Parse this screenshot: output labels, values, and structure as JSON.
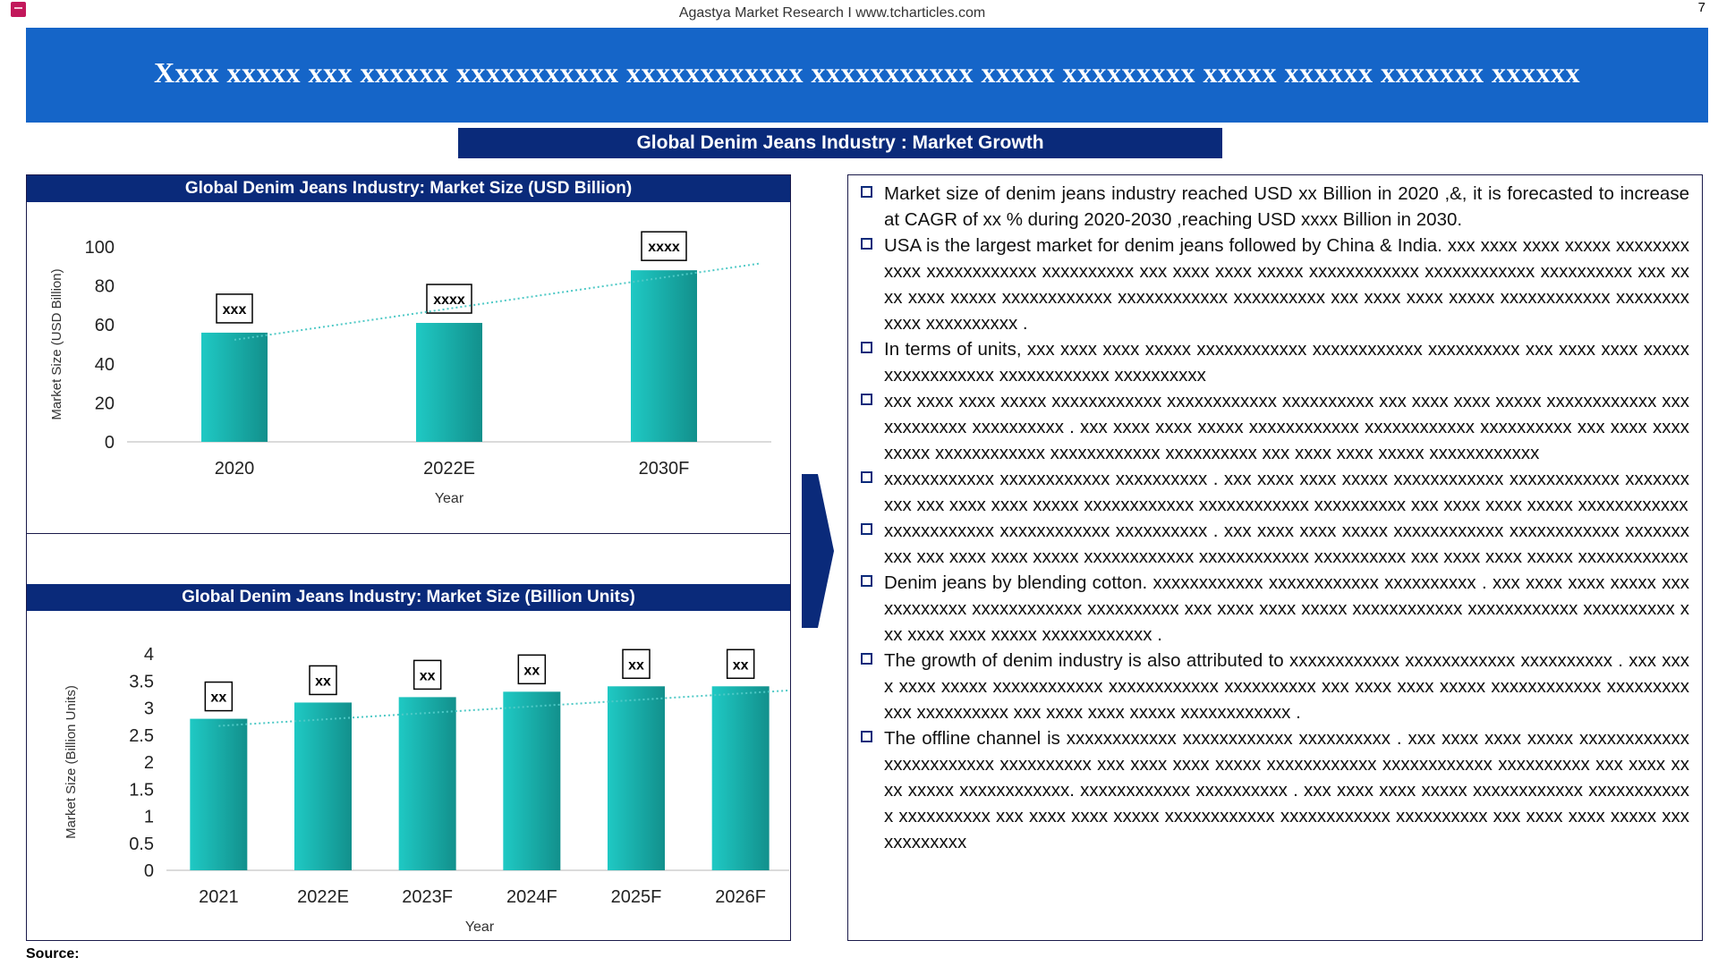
{
  "header": {
    "site": "Agastya Market Research I www.tcharticles.com",
    "page_number": "7",
    "banner_title": "Xxxx xxxxx xxx xxxxxx xxxxxxxxxxx xxxxxxxxxxxx xxxxxxxxxxx xxxxx xxxxxxxxx xxxxx xxxxxx xxxxxxx xxxxxx",
    "section_title": "Global Denim Jeans  Industry :  Market Growth",
    "banner_color": "#1565c8",
    "navy_color": "#0a2a7a"
  },
  "chart_data": [
    {
      "type": "bar",
      "title": "Global Denim Jeans Industry: Market Size (USD Billion)",
      "xlabel": "Year",
      "ylabel": "Market Size (USD Billion)",
      "categories": [
        "2020",
        "2022E",
        "2030F"
      ],
      "values": [
        56,
        61,
        88
      ],
      "data_labels": [
        "xxx",
        "xxxx",
        "xxxx"
      ],
      "ylim": [
        0,
        100
      ],
      "yticks": [
        "0",
        "20",
        "40",
        "60",
        "80",
        "100"
      ],
      "trendline": true,
      "bar_color": "#1fc9c4",
      "grid": false
    },
    {
      "type": "bar",
      "title": "Global Denim Jeans Industry: Market Size (Billion Units)",
      "xlabel": "Year",
      "ylabel": "Market Size (Billion Units)",
      "categories": [
        "2021",
        "2022E",
        "2023F",
        "2024F",
        "2025F",
        "2026F"
      ],
      "values": [
        2.8,
        3.1,
        3.2,
        3.3,
        3.4,
        3.4
      ],
      "data_labels": [
        "xx",
        "xx",
        "xx",
        "xx",
        "xx",
        "xx"
      ],
      "ylim": [
        0,
        4
      ],
      "yticks": [
        "0",
        "0.5",
        "1",
        "1.5",
        "2",
        "2.5",
        "3",
        "3.5",
        "4"
      ],
      "trendline": true,
      "bar_color": "#1fc9c4",
      "grid": false
    }
  ],
  "bullets": [
    "Market size of denim jeans industry reached USD xx Billion in 2020 ,&, it is forecasted to increase at CAGR of xx % during 2020-2030 ,reaching  USD xxxx Billion in 2030.",
    "USA is the largest market for denim jeans  followed by China & India. xxx xxxx xxxx xxxxx xxxxxxxxxxxx xxxxxxxxxxxx xxxxxxxxxx xxx xxxx xxxx xxxxx xxxxxxxxxxxx xxxxxxxxxxxx xxxxxxxxxx xxx xxxx xxxx xxxxx xxxxxxxxxxxx xxxxxxxxxxxx xxxxxxxxxx xxx xxxx xxxx xxxxx xxxxxxxxxxxx xxxxxxxxxxxx xxxxxxxxxx .",
    "In terms of units, xxx xxxx xxxx xxxxx xxxxxxxxxxxx xxxxxxxxxxxx xxxxxxxxxx xxx xxxx xxxx xxxxx xxxxxxxxxxxx xxxxxxxxxxxx xxxxxxxxxx",
    "xxx xxxx xxxx xxxxx xxxxxxxxxxxx xxxxxxxxxxxx xxxxxxxxxx xxx xxxx xxxx xxxxx xxxxxxxxxxxx xxxxxxxxxxxx xxxxxxxxxx . xxx xxxx xxxx xxxxx xxxxxxxxxxxx xxxxxxxxxxxx xxxxxxxxxx xxx xxxx xxxx xxxxx xxxxxxxxxxxx xxxxxxxxxxxx xxxxxxxxxx xxx xxxx xxxx xxxxx xxxxxxxxxxxx",
    "xxxxxxxxxxxx xxxxxxxxxxxx xxxxxxxxxx . xxx xxxx xxxx xxxxx xxxxxxxxxxxx xxxxxxxxxxxx xxxxxxxxxx xxx xxxx xxxx xxxxx xxxxxxxxxxxx xxxxxxxxxxxx xxxxxxxxxx xxx xxxx xxxx xxxxx xxxxxxxxxxxx",
    "xxxxxxxxxxxx xxxxxxxxxxxx xxxxxxxxxx . xxx xxxx xxxx xxxxx xxxxxxxxxxxx xxxxxxxxxxxx xxxxxxxxxx xxx xxxx xxxx xxxxx xxxxxxxxxxxx xxxxxxxxxxxx xxxxxxxxxx xxx xxxx xxxx xxxxx xxxxxxxxxxxx",
    "Denim jeans by blending cotton. xxxxxxxxxxxx xxxxxxxxxxxx xxxxxxxxxx . xxx xxxx xxxx xxxxx xxxxxxxxxxxx xxxxxxxxxxxx xxxxxxxxxx xxx xxxx xxxx xxxxx xxxxxxxxxxxx xxxxxxxxxxxx xxxxxxxxxx xxx xxxx xxxx xxxxx xxxxxxxxxxxx .",
    "The  growth  of  denim  industry  is  also  attributed  to  xxxxxxxxxxxx  xxxxxxxxxxxx xxxxxxxxxx . xxx xxxx xxxx xxxxx xxxxxxxxxxxx xxxxxxxxxxxx xxxxxxxxxx xxx xxxx xxxx xxxxx xxxxxxxxxxxx xxxxxxxxxxxx xxxxxxxxxx xxx xxxx xxxx xxxxx xxxxxxxxxxxx .",
    "The offline channel is xxxxxxxxxxxx xxxxxxxxxxxx xxxxxxxxxx . xxx xxxx xxxx xxxxx xxxxxxxxxxxx xxxxxxxxxxxx xxxxxxxxxx xxx xxxx xxxx xxxxx xxxxxxxxxxxx xxxxxxxxxxxx xxxxxxxxxx xxx xxxx xxxx xxxxx xxxxxxxxxxxx. xxxxxxxxxxxx xxxxxxxxxx . xxx xxxx xxxx xxxxx xxxxxxxxxxxx xxxxxxxxxxxx xxxxxxxxxx xxx xxxx xxxx xxxxx xxxxxxxxxxxx xxxxxxxxxxxx xxxxxxxxxx xxx xxxx xxxx xxxxx xxxxxxxxxxxx"
  ],
  "footer": {
    "source": "Source:"
  }
}
